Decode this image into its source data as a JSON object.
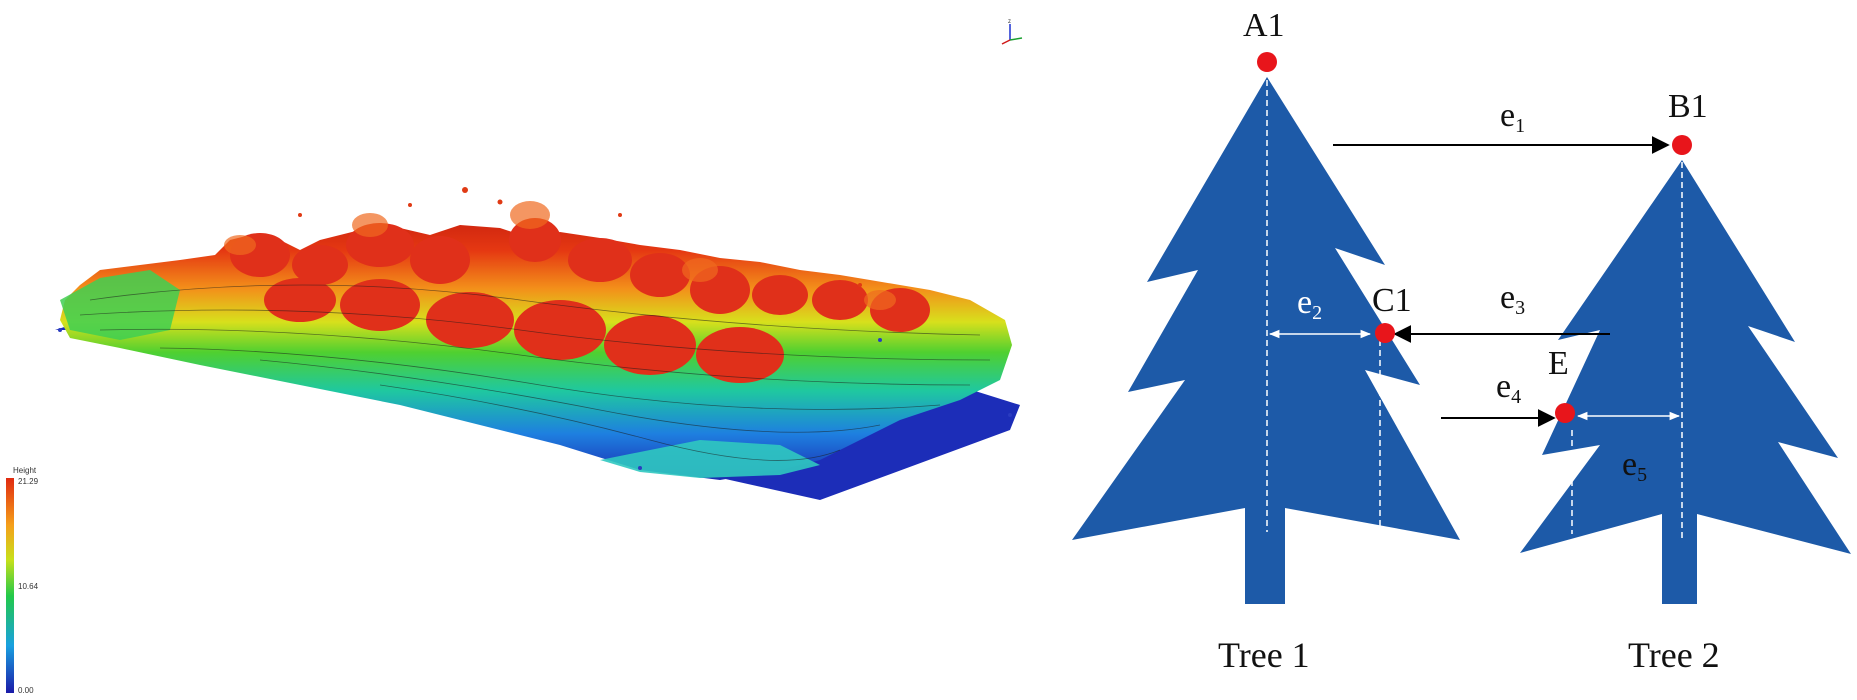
{
  "point_cloud": {
    "colorbar": {
      "title": "Height",
      "max_label": "21.29",
      "mid_label": "10.64",
      "min_label": "0.00"
    },
    "axis_gizmo_label": "z"
  },
  "diagram": {
    "points": {
      "A1": "A1",
      "B1": "B1",
      "C1": "C1",
      "E": "E"
    },
    "edges": {
      "e1": {
        "base": "e",
        "sub": "1"
      },
      "e2": {
        "base": "e",
        "sub": "2"
      },
      "e3": {
        "base": "e",
        "sub": "3"
      },
      "e4": {
        "base": "e",
        "sub": "4"
      },
      "e5": {
        "base": "e",
        "sub": "5"
      }
    },
    "trees": {
      "tree1": "Tree 1",
      "tree2": "Tree 2"
    },
    "colors": {
      "tree_fill": "#1d5aa8",
      "point_fill": "#e8151b",
      "arrow": "#000000",
      "measure": "#ffffff"
    }
  }
}
